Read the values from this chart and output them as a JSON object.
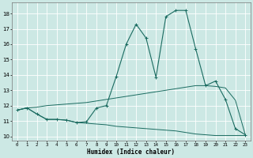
{
  "title": "",
  "xlabel": "Humidex (Indice chaleur)",
  "ylabel": "",
  "bg_color": "#cce8e4",
  "grid_color": "#ffffff",
  "line_color": "#1a6b60",
  "xlim": [
    -0.5,
    23.5
  ],
  "ylim": [
    9.7,
    18.7
  ],
  "yticks": [
    10,
    11,
    12,
    13,
    14,
    15,
    16,
    17,
    18
  ],
  "xticks": [
    0,
    1,
    2,
    3,
    4,
    5,
    6,
    7,
    8,
    9,
    10,
    11,
    12,
    13,
    14,
    15,
    16,
    17,
    18,
    19,
    20,
    21,
    22,
    23
  ],
  "curve1_x": [
    0,
    1,
    2,
    3,
    4,
    5,
    6,
    7,
    8,
    9,
    10,
    11,
    12,
    13,
    14,
    15,
    16,
    17,
    18,
    19,
    20,
    21,
    22,
    23
  ],
  "curve1_y": [
    11.7,
    11.85,
    11.45,
    11.1,
    11.1,
    11.05,
    10.9,
    10.85,
    10.8,
    10.75,
    10.65,
    10.6,
    10.55,
    10.5,
    10.45,
    10.4,
    10.35,
    10.25,
    10.15,
    10.1,
    10.05,
    10.05,
    10.05,
    10.05
  ],
  "curve2_x": [
    0,
    1,
    2,
    3,
    4,
    5,
    6,
    7,
    8,
    9,
    10,
    11,
    12,
    13,
    14,
    15,
    16,
    17,
    18,
    19,
    20,
    21,
    22,
    23
  ],
  "curve2_y": [
    11.7,
    11.85,
    11.9,
    12.0,
    12.05,
    12.1,
    12.15,
    12.2,
    12.3,
    12.4,
    12.5,
    12.6,
    12.7,
    12.8,
    12.9,
    13.0,
    13.1,
    13.2,
    13.3,
    13.3,
    13.25,
    13.15,
    12.35,
    10.1
  ],
  "curve3_x": [
    0,
    1,
    2,
    3,
    4,
    5,
    6,
    7,
    8,
    9,
    10,
    11,
    12,
    13,
    14,
    15,
    16,
    17,
    18,
    19,
    20,
    21,
    22,
    23
  ],
  "curve3_y": [
    11.7,
    11.85,
    11.45,
    11.1,
    11.1,
    11.05,
    10.9,
    10.95,
    11.85,
    12.0,
    13.9,
    16.0,
    17.3,
    16.4,
    13.85,
    17.8,
    18.2,
    18.2,
    15.7,
    13.3,
    13.6,
    12.4,
    10.5,
    10.1
  ],
  "curve3_markers": [
    0,
    1,
    2,
    3,
    4,
    5,
    6,
    7,
    8,
    9,
    10,
    11,
    12,
    13,
    14,
    15,
    16,
    17,
    18,
    19,
    20,
    21,
    22,
    23
  ]
}
